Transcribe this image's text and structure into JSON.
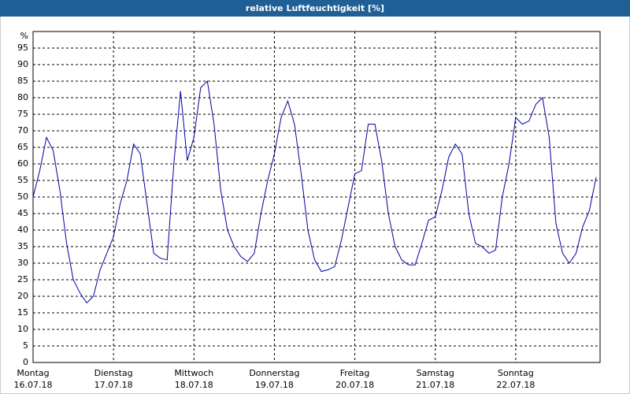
{
  "chart_data": {
    "type": "line",
    "title": "relative Luftfeuchtigkeit [%]",
    "ylabel": "%",
    "x": [
      0,
      0.0833,
      0.1667,
      0.25,
      0.3333,
      0.4167,
      0.5,
      0.5833,
      0.6667,
      0.75,
      0.8333,
      0.9167,
      1,
      1.0833,
      1.1667,
      1.25,
      1.3333,
      1.4167,
      1.5,
      1.5833,
      1.6667,
      1.75,
      1.8333,
      1.9167,
      2,
      2.0833,
      2.1667,
      2.25,
      2.3333,
      2.4167,
      2.5,
      2.5833,
      2.6667,
      2.75,
      2.8333,
      2.9167,
      3,
      3.0833,
      3.1667,
      3.25,
      3.3333,
      3.4167,
      3.5,
      3.5833,
      3.6667,
      3.75,
      3.8333,
      3.9167,
      4,
      4.0833,
      4.1667,
      4.25,
      4.3333,
      4.4167,
      4.5,
      4.5833,
      4.6667,
      4.75,
      4.8333,
      4.9167,
      5,
      5.0833,
      5.1667,
      5.25,
      5.3333,
      5.4167,
      5.5,
      5.5833,
      5.6667,
      5.75,
      5.8333,
      5.9167,
      6,
      6.0833,
      6.1667,
      6.25,
      6.3333,
      6.4167,
      6.5,
      6.5833,
      6.6667,
      6.75,
      6.8333,
      6.9167,
      7
    ],
    "series": [
      {
        "name": "relative Luftfeuchtigkeit",
        "color": "#0000a0",
        "values": [
          50,
          58,
          68,
          64,
          52,
          36,
          25,
          21,
          18,
          20,
          28,
          33,
          38,
          48,
          55,
          66,
          63,
          48,
          33,
          31.5,
          31,
          60,
          82,
          61,
          68,
          83,
          85,
          72,
          52,
          40,
          35,
          32,
          30.5,
          33,
          45,
          55,
          63,
          74,
          79,
          72,
          57,
          40,
          31,
          27.5,
          28,
          29,
          37,
          47,
          57,
          58,
          72,
          72,
          61,
          45,
          35,
          31,
          29.5,
          29.5,
          36,
          43,
          44,
          52,
          62,
          66,
          63,
          45,
          36,
          35,
          33,
          34,
          50,
          60,
          74,
          72,
          73,
          78,
          80,
          68,
          42,
          33,
          30,
          33,
          41,
          46,
          56
        ]
      }
    ],
    "xlim": [
      0,
      7
    ],
    "xticks": [
      {
        "value": 0,
        "label": [
          "Montag",
          "16.07.18"
        ]
      },
      {
        "value": 1,
        "label": [
          "Dienstag",
          "17.07.18"
        ]
      },
      {
        "value": 2,
        "label": [
          "Mittwoch",
          "18.07.18"
        ]
      },
      {
        "value": 3,
        "label": [
          "Donnerstag",
          "19.07.18"
        ]
      },
      {
        "value": 4,
        "label": [
          "Freitag",
          "20.07.18"
        ]
      },
      {
        "value": 5,
        "label": [
          "Samstag",
          "21.07.18"
        ]
      },
      {
        "value": 6,
        "label": [
          "Sonntag",
          "22.07.18"
        ]
      }
    ],
    "ylim": [
      0,
      100
    ],
    "yticks": [
      0,
      5,
      10,
      15,
      20,
      25,
      30,
      35,
      40,
      45,
      50,
      55,
      60,
      65,
      70,
      75,
      80,
      85,
      90,
      95
    ],
    "grid": true
  }
}
